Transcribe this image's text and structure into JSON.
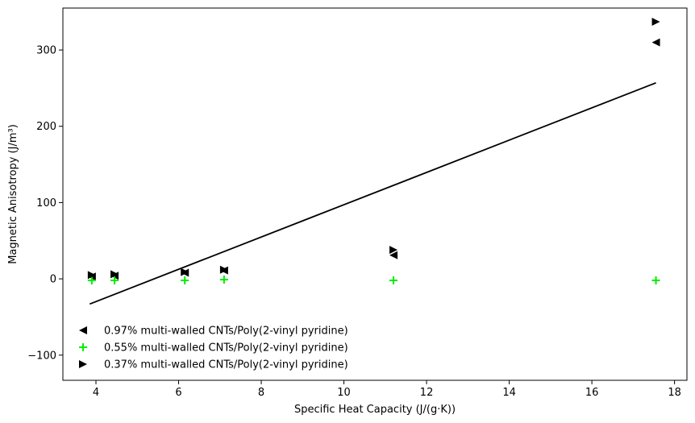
{
  "chart_data": {
    "type": "scatter",
    "title": "",
    "xlabel": "Specific Heat Capacity (J/(g·K))",
    "ylabel": "Magnetic Anisotropy (J/m³)",
    "xlim": [
      3.2,
      18.3
    ],
    "ylim": [
      -133,
      355
    ],
    "xticks": [
      4,
      6,
      8,
      10,
      12,
      14,
      16,
      18
    ],
    "yticks": [
      -100,
      0,
      100,
      200,
      300
    ],
    "xtick_labels": [
      "4",
      "6",
      "8",
      "10",
      "12",
      "14",
      "16",
      "18"
    ],
    "ytick_labels": [
      "−100",
      "0",
      "100",
      "200",
      "300"
    ],
    "grid": false,
    "legend_position": "lower-left",
    "series": [
      {
        "name": "0.97% multi-walled CNTs/Poly(2-vinyl pyridine)",
        "marker": "triangle-left",
        "color": "#000000",
        "x": [
          3.9,
          4.45,
          6.15,
          7.1,
          11.2,
          17.55
        ],
        "y": [
          3,
          4,
          8,
          11,
          31,
          310
        ]
      },
      {
        "name": "0.55% multi-walled CNTs/Poly(2-vinyl pyridine)",
        "marker": "plus",
        "color": "#00ee00",
        "x": [
          3.9,
          4.45,
          6.15,
          7.1,
          11.2,
          17.55
        ],
        "y": [
          -2,
          -2,
          -2,
          -1,
          -2,
          -2
        ]
      },
      {
        "name": "0.37% multi-walled CNTs/Poly(2-vinyl pyridine)",
        "marker": "triangle-right",
        "color": "#000000",
        "x": [
          3.9,
          4.45,
          6.15,
          7.1,
          11.2,
          17.55
        ],
        "y": [
          5,
          6,
          9,
          12,
          38,
          337
        ]
      }
    ],
    "trend_line": {
      "color": "#000000",
      "x": [
        3.85,
        17.55
      ],
      "y": [
        -33,
        257
      ]
    }
  }
}
